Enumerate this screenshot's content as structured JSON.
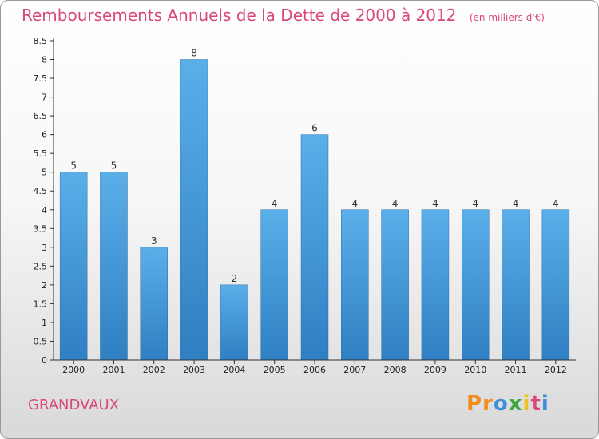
{
  "title": "Remboursements Annuels de la Dette de 2000 à 2012",
  "subtitle": "(en milliers d'€)",
  "commune": "GRANDVAUX",
  "logo": {
    "letters": [
      "P",
      "r",
      "o",
      "x",
      "i",
      "t",
      "i"
    ],
    "colors": [
      "#f28c1e",
      "#f28c1e",
      "#3d8fd6",
      "#3aa83a",
      "#f2c21e",
      "#d9477b",
      "#3d8fd6"
    ]
  },
  "colors": {
    "bar_top": "#5aafe9",
    "bar_bottom": "#2f7fc2",
    "title": "#d9477b",
    "axis": "#333333"
  },
  "chart_data": {
    "type": "bar",
    "categories": [
      "2000",
      "2001",
      "2002",
      "2003",
      "2004",
      "2005",
      "2006",
      "2007",
      "2008",
      "2009",
      "2010",
      "2011",
      "2012"
    ],
    "values": [
      5,
      5,
      3,
      8,
      2,
      4,
      6,
      4,
      4,
      4,
      4,
      4,
      4
    ],
    "ylim": [
      0,
      8.5
    ],
    "yticks": [
      "0",
      "0.5",
      "1",
      "1.5",
      "2",
      "2.5",
      "3",
      "3.5",
      "4",
      "4.5",
      "5",
      "5.5",
      "6",
      "6.5",
      "7",
      "7.5",
      "8",
      "8.5"
    ],
    "grid": false,
    "legend": "none",
    "xlabel": "",
    "ylabel": ""
  }
}
